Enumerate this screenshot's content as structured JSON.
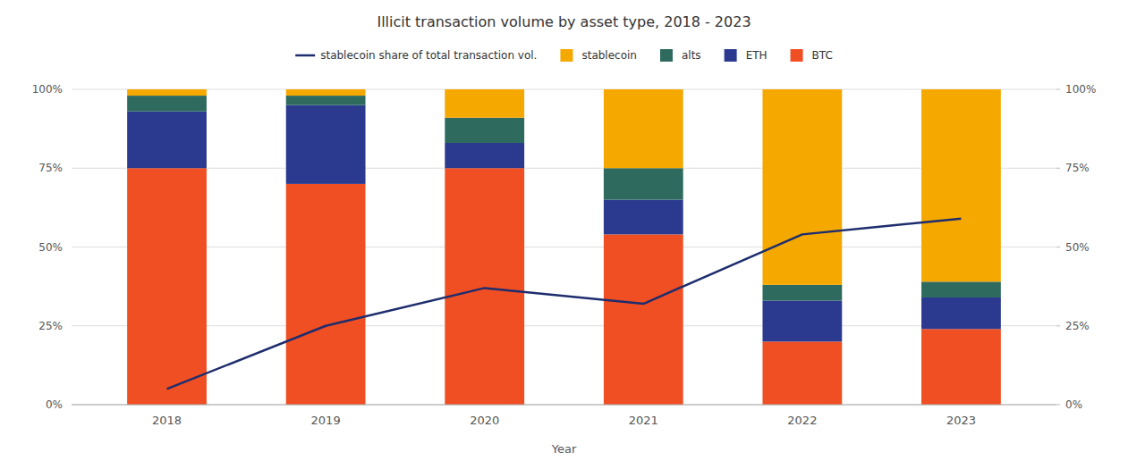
{
  "chart_data": {
    "type": "bar",
    "title": "Illicit transaction volume by asset type, 2018 - 2023",
    "xlabel": "Year",
    "categories": [
      "2018",
      "2019",
      "2020",
      "2021",
      "2022",
      "2023"
    ],
    "stacked": true,
    "grid": true,
    "legend": "top",
    "ylim": [
      0,
      100
    ],
    "yticks": [
      {
        "value": 0,
        "label": "0%"
      },
      {
        "value": 25,
        "label": "25%"
      },
      {
        "value": 50,
        "label": "50%"
      },
      {
        "value": 75,
        "label": "75%"
      },
      {
        "value": 100,
        "label": "100%"
      }
    ],
    "y2lim": [
      0,
      100
    ],
    "y2ticks": [
      {
        "value": 0,
        "label": "0%"
      },
      {
        "value": 25,
        "label": "25%"
      },
      {
        "value": 50,
        "label": "50%"
      },
      {
        "value": 75,
        "label": "75%"
      },
      {
        "value": 100,
        "label": "100%"
      }
    ],
    "series": [
      {
        "name": "BTC",
        "type": "bar",
        "color": "#f04e23",
        "values": [
          75,
          70,
          75,
          54,
          20,
          24
        ]
      },
      {
        "name": "ETH",
        "type": "bar",
        "color": "#2b3a8f",
        "values": [
          18,
          25,
          8,
          11,
          13,
          10
        ]
      },
      {
        "name": "alts",
        "type": "bar",
        "color": "#2e6b5e",
        "values": [
          5,
          3,
          8,
          10,
          5,
          5
        ]
      },
      {
        "name": "stablecoin",
        "type": "bar",
        "color": "#f5a800",
        "values": [
          2,
          2,
          9,
          25,
          62,
          61
        ]
      },
      {
        "name": "stablecoin share of total transaction vol.",
        "type": "line",
        "axis": "y2",
        "color": "#1e2d6e",
        "values": [
          5,
          25,
          37,
          32,
          54,
          59
        ]
      }
    ]
  }
}
